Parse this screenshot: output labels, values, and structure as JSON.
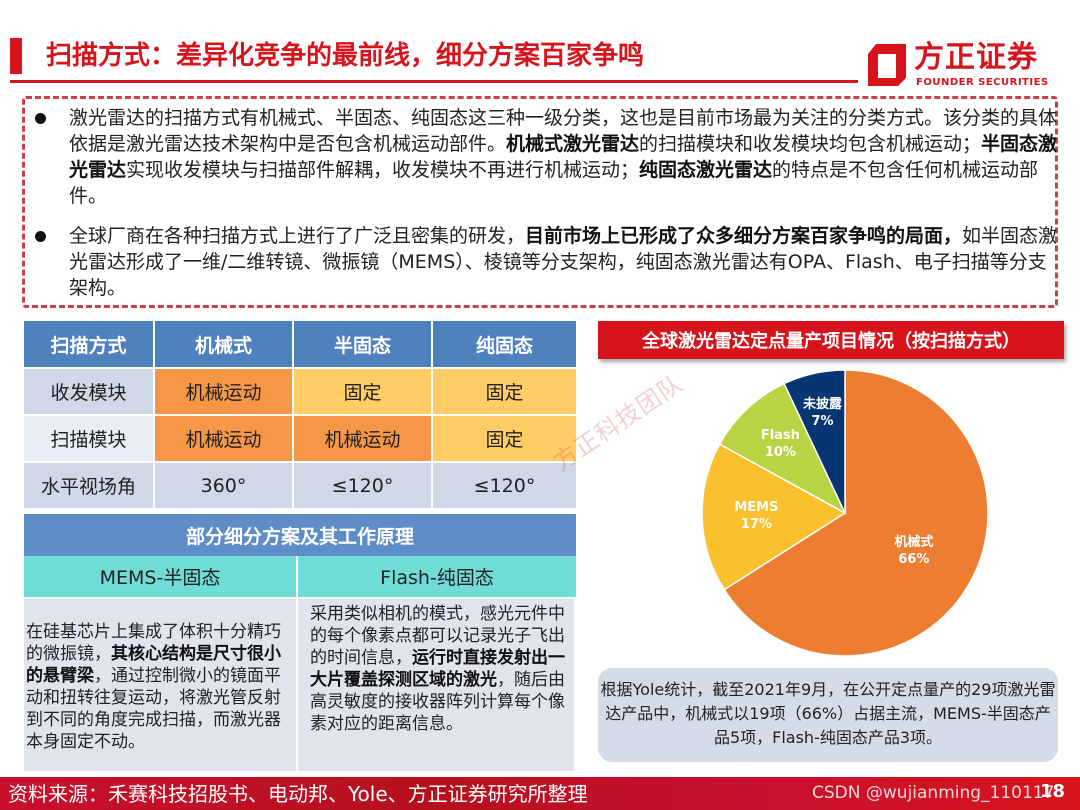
{
  "header": {
    "title": "扫描方式：差异化竞争的最前线，细分方案百家争鸣",
    "logo_cn": "方正证券",
    "logo_en": "FOUNDER SECURITIES"
  },
  "bullets": [
    {
      "segments": [
        {
          "t": "激光雷达的扫描方式有机械式、半固态、纯固态这三种一级分类，这也是目前市场最为关注的分类方式。该分类的具体依据是激光雷达技术架构中是否包含机械运动部件。",
          "b": false
        },
        {
          "t": "机械式激光雷达",
          "b": true
        },
        {
          "t": "的扫描模块和收发模块均包含机械运动；",
          "b": false
        },
        {
          "t": "半固态激光雷达",
          "b": true
        },
        {
          "t": "实现收发模块与扫描部件解耦，收发模块不再进行机械运动；",
          "b": false
        },
        {
          "t": "纯固态激光雷达",
          "b": true
        },
        {
          "t": "的特点是不包含任何机械运动部件。",
          "b": false
        }
      ]
    },
    {
      "segments": [
        {
          "t": "全球厂商在各种扫描方式上进行了广泛且密集的研发，",
          "b": false
        },
        {
          "t": "目前市场上已形成了众多细分方案百家争鸣的局面，",
          "b": true
        },
        {
          "t": "如半固态激光雷达形成了一维/二维转镜、微振镜（MEMS）、棱镜等分支架构，纯固态激光雷达有OPA、Flash、电子扫描等分支架构。",
          "b": false
        }
      ]
    }
  ],
  "table": {
    "headers": [
      "扫描方式",
      "机械式",
      "半固态",
      "纯固态"
    ],
    "rows": [
      {
        "label": "收发模块",
        "cells": [
          "机械运动",
          "固定",
          "固定"
        ],
        "colors": [
          "orange",
          "yellow",
          "yellow"
        ]
      },
      {
        "label": "扫描模块",
        "cells": [
          "机械运动",
          "机械运动",
          "固定"
        ],
        "colors": [
          "orange",
          "orange",
          "yellow"
        ]
      },
      {
        "label": "水平视场角",
        "cells": [
          "360°",
          "≤120°",
          "≤120°"
        ],
        "colors": [
          "plain",
          "plain",
          "plain"
        ]
      }
    ],
    "section_header": "部分细分方案及其工作原理",
    "sub_headers": [
      "MEMS-半固态",
      "Flash-纯固态"
    ],
    "descriptions": [
      [
        {
          "t": "在硅基芯片上集成了体积十分精巧的微振镜，",
          "b": false
        },
        {
          "t": "其核心结构是尺寸很小的悬臂梁",
          "b": true
        },
        {
          "t": "，通过控制微小的镜面平动和扭转往复运动，将激光管反射到不同的角度完成扫描，而激光器本身固定不动。",
          "b": false
        }
      ],
      [
        {
          "t": "采用类似相机的模式，感光元件中的每个像素点都可以记录光子飞出的时间信息，",
          "b": false
        },
        {
          "t": "运行时直接发射出一大片覆盖探测区域的激光",
          "b": true
        },
        {
          "t": "，随后由高灵敏度的接收器阵列计算每个像素对应的距离信息。",
          "b": false
        }
      ]
    ]
  },
  "watermark": "方正科技团队",
  "chart": {
    "title": "全球激光雷达定点量产项目情况（按扫描方式）",
    "note": "根据Yole统计，截至2021年9月，在公开定点量产的29项激光雷达产品中，机械式以19项（66%）占据主流，MEMS-半固态产品5项，Flash-纯固态产品3项。"
  },
  "chart_data": {
    "type": "pie",
    "title": "全球激光雷达定点量产项目情况（按扫描方式）",
    "categories": [
      "机械式",
      "MEMS",
      "Flash",
      "未披露"
    ],
    "values": [
      66,
      17,
      10,
      7
    ],
    "unit": "%",
    "colors": [
      "#ed7d31",
      "#fbc02d",
      "#b9d443",
      "#063571"
    ],
    "start_angle": "12 o'clock, clockwise",
    "legend": "none (data labels inside slices)"
  },
  "footer": {
    "source": "资料来源：禾赛科技招股书、电动邦、Yole、方正证券研究所整理",
    "credit": "CSDN @wujianming_110117",
    "page": "18"
  }
}
